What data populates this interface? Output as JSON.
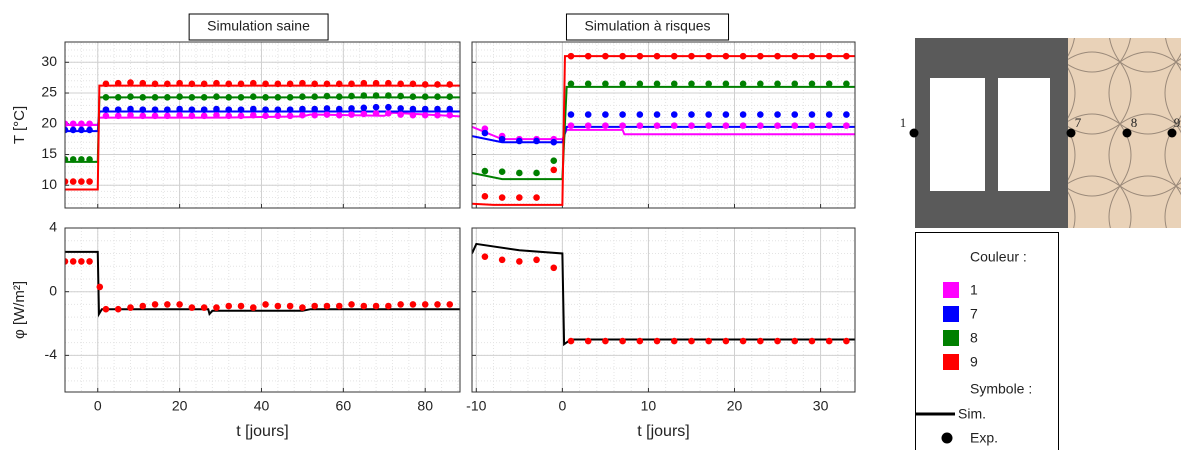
{
  "chart_data": [
    {
      "type": "line",
      "title": "Simulation saine",
      "ylabel": "T [°C]",
      "xlim": [
        -8,
        88.5
      ],
      "ylim": [
        6.3,
        33.3
      ],
      "xticks": [
        0,
        20,
        40,
        60,
        80
      ],
      "yticks": [
        10,
        15,
        20,
        25,
        30
      ],
      "show_xtick_labels": false,
      "show_ytick_labels": true,
      "grid": true,
      "minor_grid": true,
      "series": [
        {
          "color": "#ff00ff",
          "x": [
            -8,
            0,
            0.4,
            30,
            50,
            52,
            70,
            72,
            88.5
          ],
          "values": [
            19.8,
            19.8,
            21,
            21,
            21.2,
            21.5,
            21.3,
            21.8,
            21.2
          ]
        },
        {
          "color": "#0000ff",
          "x": [
            -8,
            0,
            0.4,
            88.5
          ],
          "values": [
            18.8,
            18.8,
            22,
            22
          ]
        },
        {
          "color": "#008000",
          "x": [
            -8,
            0,
            0.4,
            88.5
          ],
          "values": [
            13.8,
            13.8,
            24.3,
            24.3
          ]
        },
        {
          "color": "#ff0000",
          "x": [
            -8,
            0,
            0.4,
            88.5
          ],
          "values": [
            9.3,
            9.3,
            26.2,
            26.2
          ]
        }
      ],
      "points": {
        "x": [
          -8,
          -6,
          -4,
          -2,
          2,
          5,
          8,
          11,
          14,
          17,
          20,
          23,
          26,
          29,
          32,
          35,
          38,
          41,
          44,
          47,
          50,
          53,
          56,
          59,
          62,
          65,
          68,
          71,
          74,
          77,
          80,
          83,
          86
        ],
        "series": [
          {
            "color": "#ff00ff",
            "values": [
              20,
              20,
              20,
              20,
              21.3,
              21.3,
              21.4,
              21.3,
              21.3,
              21.3,
              21.4,
              21.3,
              21.3,
              21.4,
              21.3,
              21.3,
              21.4,
              21.3,
              21.3,
              21.3,
              21.4,
              21.4,
              21.5,
              21.4,
              21.5,
              21.6,
              21.7,
              21.7,
              21.5,
              21.4,
              21.4,
              21.4,
              21.4
            ]
          },
          {
            "color": "#0000ff",
            "values": [
              19,
              19,
              19,
              19,
              22.3,
              22.3,
              22.4,
              22.3,
              22.3,
              22.3,
              22.4,
              22.3,
              22.3,
              22.4,
              22.3,
              22.3,
              22.4,
              22.3,
              22.3,
              22.3,
              22.4,
              22.4,
              22.5,
              22.4,
              22.5,
              22.6,
              22.7,
              22.7,
              22.5,
              22.4,
              22.4,
              22.4,
              22.4
            ]
          },
          {
            "color": "#008000",
            "values": [
              14.2,
              14.2,
              14.2,
              14.2,
              24.3,
              24.3,
              24.4,
              24.3,
              24.3,
              24.3,
              24.4,
              24.3,
              24.3,
              24.4,
              24.3,
              24.3,
              24.4,
              24.3,
              24.3,
              24.3,
              24.4,
              24.4,
              24.5,
              24.4,
              24.5,
              24.6,
              24.6,
              24.6,
              24.5,
              24.4,
              24.4,
              24.4,
              24.4
            ]
          },
          {
            "color": "#ff0000",
            "values": [
              10.6,
              10.6,
              10.6,
              10.6,
              26.5,
              26.6,
              26.7,
              26.6,
              26.5,
              26.5,
              26.6,
              26.5,
              26.5,
              26.6,
              26.5,
              26.5,
              26.6,
              26.5,
              26.5,
              26.5,
              26.6,
              26.5,
              26.5,
              26.5,
              26.5,
              26.6,
              26.6,
              26.6,
              26.5,
              26.5,
              26.4,
              26.4,
              26.4
            ]
          }
        ]
      }
    },
    {
      "type": "line",
      "title": "Simulation à risques",
      "xlim": [
        -10.5,
        34
      ],
      "ylim": [
        6.3,
        33.3
      ],
      "xticks": [
        -10,
        0,
        10,
        20,
        30
      ],
      "yticks": [
        10,
        15,
        20,
        25,
        30
      ],
      "show_xtick_labels": false,
      "show_ytick_labels": false,
      "grid": true,
      "minor_grid": true,
      "series": [
        {
          "color": "#ff00ff",
          "x": [
            -10.5,
            -7,
            0,
            0.5,
            7,
            7.2,
            34
          ],
          "values": [
            19.5,
            17.5,
            17.5,
            19,
            19,
            18.3,
            18.3
          ]
        },
        {
          "color": "#0000ff",
          "x": [
            -10.5,
            -7,
            0,
            0.5,
            34
          ],
          "values": [
            18,
            17,
            17,
            19.5,
            19.5
          ]
        },
        {
          "color": "#008000",
          "x": [
            -10.5,
            -7,
            0,
            0.5,
            34
          ],
          "values": [
            12,
            11,
            11,
            26,
            26
          ]
        },
        {
          "color": "#ff0000",
          "x": [
            -10.5,
            -8,
            0,
            0.3,
            34
          ],
          "values": [
            7,
            6.8,
            6.8,
            31,
            31
          ]
        }
      ],
      "points": {
        "x": [
          -9,
          -7,
          -5,
          -3,
          -1,
          1,
          3,
          5,
          7,
          9,
          11,
          13,
          15,
          17,
          19,
          21,
          23,
          25,
          27,
          29,
          31,
          33
        ],
        "series": [
          {
            "color": "#ff00ff",
            "values": [
              19.2,
              18,
              17.5,
              17.5,
              17.5,
              19.7,
              19.7,
              19.7,
              19.7,
              19.7,
              19.7,
              19.7,
              19.7,
              19.7,
              19.7,
              19.7,
              19.7,
              19.7,
              19.7,
              19.7,
              19.7,
              19.7
            ]
          },
          {
            "color": "#0000ff",
            "values": [
              18.5,
              17.5,
              17.2,
              17.2,
              17,
              21.5,
              21.5,
              21.5,
              21.5,
              21.5,
              21.5,
              21.5,
              21.5,
              21.5,
              21.5,
              21.5,
              21.5,
              21.5,
              21.5,
              21.5,
              21.5,
              21.5
            ]
          },
          {
            "color": "#008000",
            "values": [
              12.3,
              12.2,
              12,
              12,
              14,
              26.5,
              26.5,
              26.5,
              26.5,
              26.5,
              26.5,
              26.5,
              26.5,
              26.5,
              26.5,
              26.5,
              26.5,
              26.5,
              26.5,
              26.5,
              26.5,
              26.5
            ]
          },
          {
            "color": "#ff0000",
            "values": [
              8.2,
              8,
              8,
              8,
              12.5,
              31,
              31,
              31,
              31,
              31,
              31,
              31,
              31,
              31,
              31,
              31,
              31,
              31,
              31,
              31,
              31,
              31
            ]
          }
        ]
      }
    },
    {
      "type": "line",
      "ylabel": "φ [W/m²]",
      "xlabel": "t [jours]",
      "xlim": [
        -8,
        88.5
      ],
      "ylim": [
        -6.3,
        4
      ],
      "xticks": [
        0,
        20,
        40,
        60,
        80
      ],
      "yticks": [
        -4,
        0,
        4
      ],
      "show_xtick_labels": true,
      "show_ytick_labels": true,
      "grid": true,
      "minor_grid": true,
      "series": [
        {
          "color": "#000000",
          "x": [
            -8,
            0,
            0.3,
            1,
            27,
            27.3,
            28,
            50,
            52,
            88.5
          ],
          "values": [
            2.5,
            2.5,
            -1.4,
            -1.1,
            -1.1,
            -1.4,
            -1.2,
            -1.2,
            -1.1,
            -1.1
          ]
        }
      ],
      "points": {
        "x": [
          -8,
          -6,
          -4,
          -2,
          0.5,
          2,
          5,
          8,
          11,
          14,
          17,
          20,
          23,
          26,
          29,
          32,
          35,
          38,
          41,
          44,
          47,
          50,
          53,
          56,
          59,
          62,
          65,
          68,
          71,
          74,
          77,
          80,
          83,
          86
        ],
        "series": [
          {
            "color": "#ff0000",
            "values": [
              1.9,
              1.9,
              1.9,
              1.9,
              0.3,
              -1.1,
              -1.1,
              -1,
              -0.9,
              -0.8,
              -0.8,
              -0.8,
              -1,
              -1,
              -1,
              -0.9,
              -0.9,
              -1,
              -0.8,
              -0.9,
              -0.9,
              -1,
              -0.9,
              -0.9,
              -0.9,
              -0.8,
              -0.9,
              -0.9,
              -0.9,
              -0.8,
              -0.8,
              -0.8,
              -0.8,
              -0.8
            ]
          }
        ]
      }
    },
    {
      "type": "line",
      "xlabel": "t [jours]",
      "xlim": [
        -10.5,
        34
      ],
      "ylim": [
        -6.3,
        4
      ],
      "xticks": [
        -10,
        0,
        10,
        20,
        30
      ],
      "yticks": [
        -4,
        0,
        4
      ],
      "show_xtick_labels": true,
      "show_ytick_labels": false,
      "grid": true,
      "minor_grid": true,
      "series": [
        {
          "color": "#000000",
          "x": [
            -10.5,
            -10,
            -5,
            0,
            0.2,
            1,
            34
          ],
          "values": [
            2.4,
            3,
            2.6,
            2.4,
            -3.3,
            -3,
            -3
          ]
        }
      ],
      "points": {
        "x": [
          -9,
          -7,
          -5,
          -3,
          -1,
          1,
          3,
          5,
          7,
          9,
          11,
          13,
          15,
          17,
          19,
          21,
          23,
          25,
          27,
          29,
          31,
          33
        ],
        "series": [
          {
            "color": "#ff0000",
            "values": [
              2.2,
              2,
              1.9,
              2,
              1.5,
              -3.1,
              -3.1,
              -3.1,
              -3.1,
              -3.1,
              -3.1,
              -3.1,
              -3.1,
              -3.1,
              -3.1,
              -3.1,
              -3.1,
              -3.1,
              -3.1,
              -3.1,
              -3.1,
              -3.1
            ]
          }
        ]
      }
    }
  ],
  "legend": {
    "color_title": "Couleur :",
    "items": [
      {
        "label": "1",
        "color": "#ff00ff"
      },
      {
        "label": "7",
        "color": "#0000ff"
      },
      {
        "label": "8",
        "color": "#008000"
      },
      {
        "label": "9",
        "color": "#ff0000"
      }
    ],
    "symbol_title": "Symbole :",
    "line_label": "Sim.",
    "dot_label": "Exp."
  },
  "diagram": {
    "labels": [
      "1",
      "7",
      "8",
      "9"
    ]
  }
}
